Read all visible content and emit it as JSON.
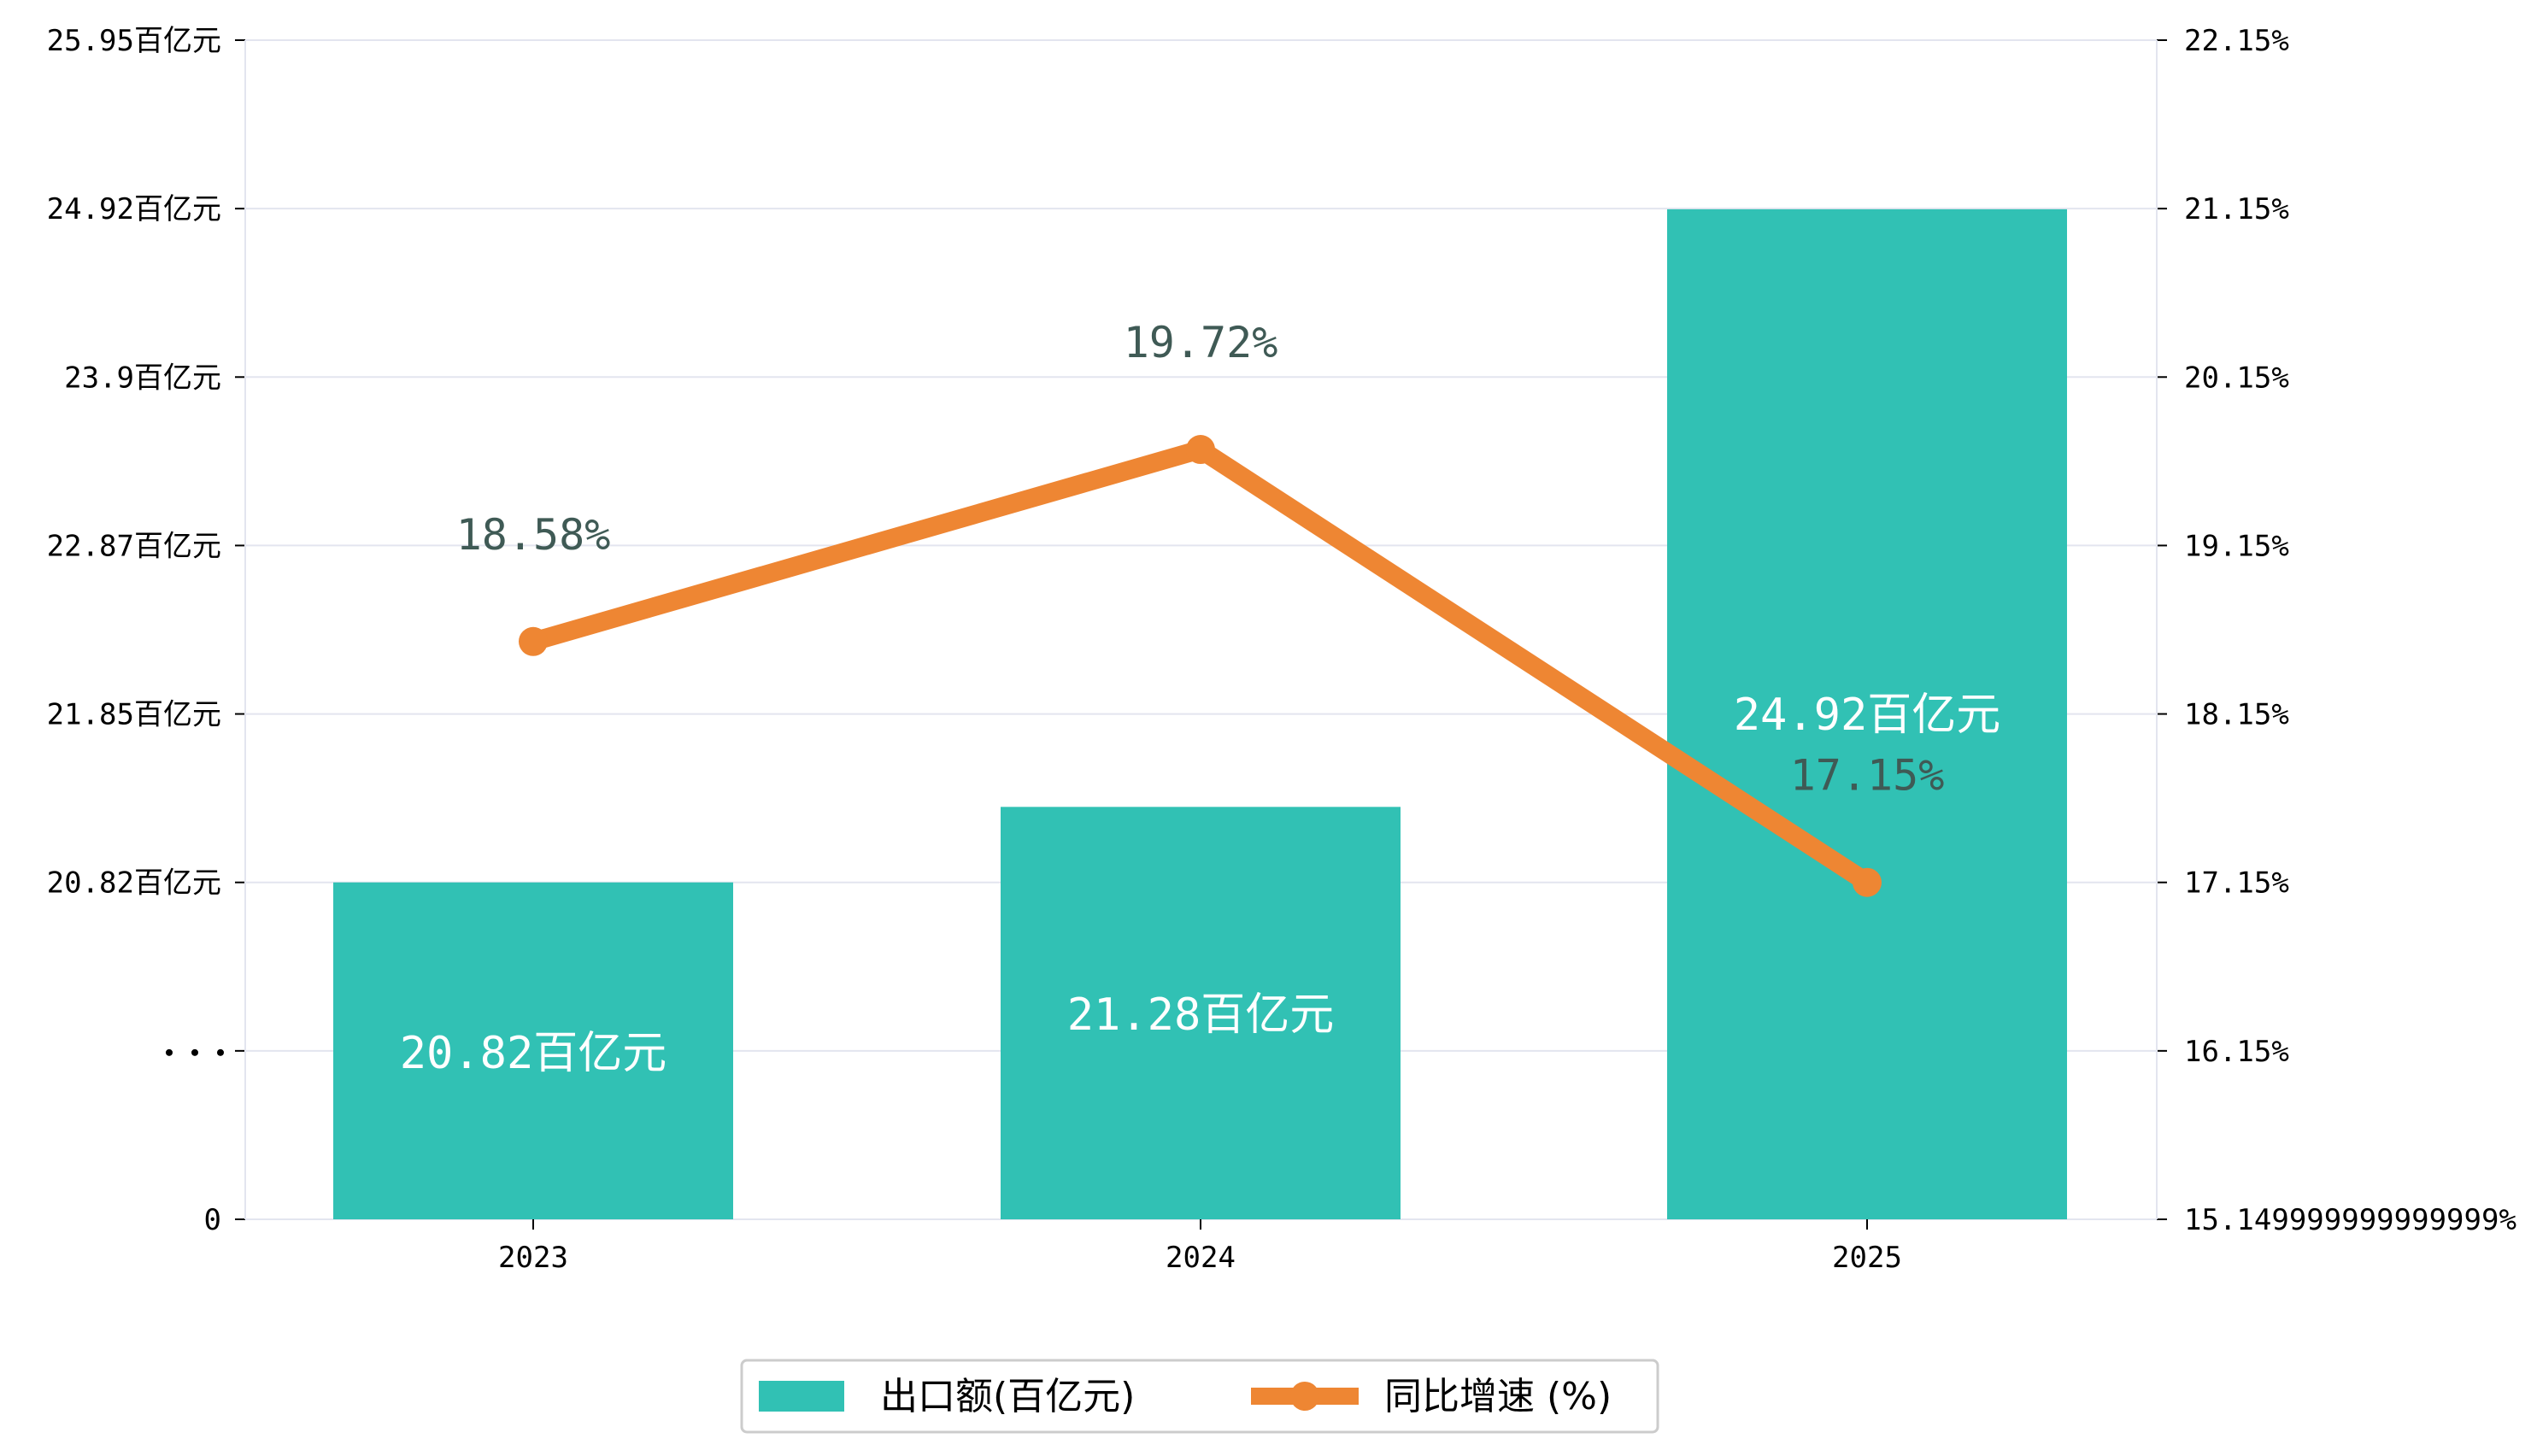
{
  "chart_data": {
    "type": "bar+line",
    "categories": [
      "2023",
      "2024",
      "2025"
    ],
    "series": [
      {
        "name": "出口额(百亿元)",
        "type": "bar",
        "axis": "left",
        "values": [
          20.82,
          21.28,
          24.92
        ],
        "labels": [
          "20.82百亿元",
          "21.28百亿元",
          "24.92百亿元"
        ],
        "color": "#31c1b4"
      },
      {
        "name": "同比增速 (%)",
        "type": "line",
        "axis": "right",
        "values": [
          18.58,
          19.72,
          17.15
        ],
        "labels": [
          "18.58%",
          "19.72%",
          "17.15%"
        ],
        "color": "#ee8633"
      }
    ],
    "left_axis": {
      "break": true,
      "tick_values": [
        0,
        null,
        20.82,
        21.85,
        22.87,
        23.9,
        24.92,
        25.95
      ],
      "tick_labels": [
        "0",
        "...",
        "20.82百亿元",
        "21.85百亿元",
        "22.87百亿元",
        "23.9百亿元",
        "24.92百亿元",
        "25.95百亿元"
      ]
    },
    "right_axis": {
      "ylim": [
        15.15,
        22.15
      ],
      "tick_values": [
        15.15,
        16.15,
        17.15,
        18.15,
        19.15,
        20.15,
        21.15,
        22.15
      ],
      "tick_labels": [
        "15.149999999999999%",
        "16.15%",
        "17.15%",
        "18.15%",
        "19.15%",
        "20.15%",
        "21.15%",
        "22.15%"
      ]
    },
    "grid": true,
    "legend": "bottom-center",
    "colors": {
      "grid": "#e3e5ef",
      "axis": "#000000",
      "pt_label": "#3f5a55"
    }
  }
}
